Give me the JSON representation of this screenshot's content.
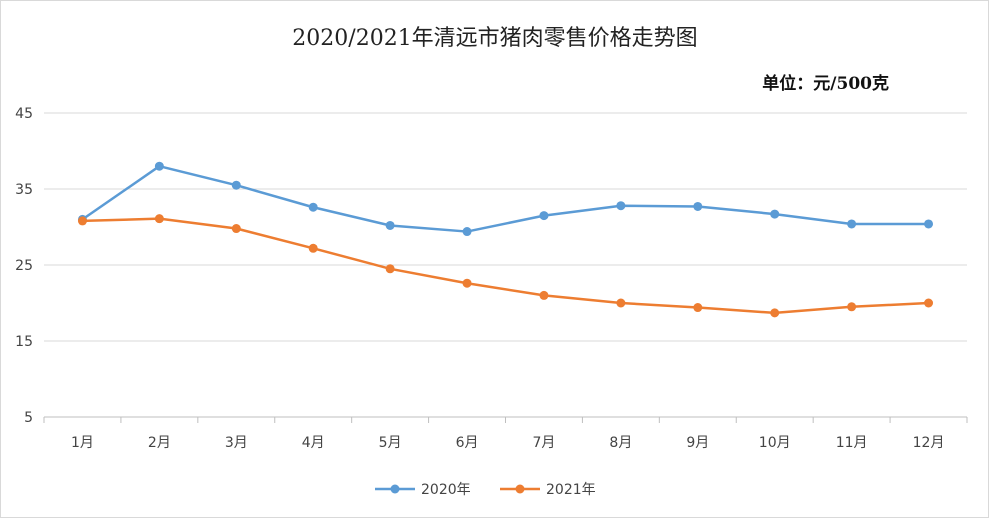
{
  "chart_data": {
    "type": "line",
    "title": "2020/2021年清远市猪肉零售价格走势图",
    "unit_label": "单位：元/500克",
    "categories": [
      "1月",
      "2月",
      "3月",
      "4月",
      "5月",
      "6月",
      "7月",
      "8月",
      "9月",
      "10月",
      "11月",
      "12月"
    ],
    "y_ticks": [
      "5",
      "15",
      "25",
      "35",
      "45"
    ],
    "ylim": [
      5,
      45
    ],
    "grid": true,
    "legend_position": "bottom",
    "series": [
      {
        "name": "2020年",
        "color": "#5b9bd5",
        "values": [
          31,
          38,
          35.5,
          32.6,
          30.2,
          29.4,
          31.5,
          32.8,
          32.7,
          31.7,
          30.4,
          30.4
        ]
      },
      {
        "name": "2021年",
        "color": "#ed7d31",
        "values": [
          30.8,
          31.1,
          29.8,
          27.2,
          24.5,
          22.6,
          21,
          20,
          19.4,
          18.7,
          19.5,
          20
        ]
      }
    ]
  }
}
